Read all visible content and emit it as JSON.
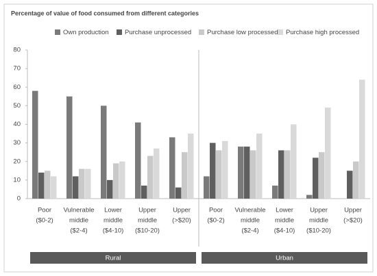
{
  "chart_data": {
    "type": "bar",
    "title": "Percentage of value of food consumed from different categories",
    "categories": [
      [
        "Poor",
        "($0-2)"
      ],
      [
        "Vulnerable",
        "middle",
        "($2-4)"
      ],
      [
        "Lower",
        "middle",
        "($4-10)"
      ],
      [
        "Upper",
        "middle",
        "($10-20)"
      ],
      [
        "Upper",
        "(>$20)"
      ],
      [
        "Poor",
        "($0-2)"
      ],
      [
        "Vulnerable",
        "middle",
        "($2-4)"
      ],
      [
        "Lower",
        "middle",
        "($4-10)"
      ],
      [
        "Upper",
        "middle",
        "($10-20)"
      ],
      [
        "Upper",
        "(>$20)"
      ]
    ],
    "groups": [
      "Rural",
      "Urban"
    ],
    "series": [
      {
        "name": "Own production",
        "color": "#7a7a7a",
        "values": [
          58,
          55,
          50,
          41,
          33,
          12,
          28,
          7,
          2,
          0
        ]
      },
      {
        "name": "Purchase unprocessed",
        "color": "#5f5f5f",
        "values": [
          14,
          12,
          10,
          7,
          6,
          30,
          28,
          26,
          22,
          15
        ]
      },
      {
        "name": "Purchase low processed",
        "color": "#c9c9c9",
        "values": [
          15,
          16,
          19,
          23,
          25,
          26,
          26,
          26,
          25,
          20
        ]
      },
      {
        "name": "Purchase high processed",
        "color": "#d9d9d9",
        "values": [
          12,
          16,
          20,
          27,
          35,
          31,
          35,
          40,
          49,
          64
        ]
      }
    ],
    "ylim": [
      0,
      80
    ],
    "yticks": [
      0,
      10,
      20,
      30,
      40,
      50,
      60,
      70,
      80
    ]
  }
}
